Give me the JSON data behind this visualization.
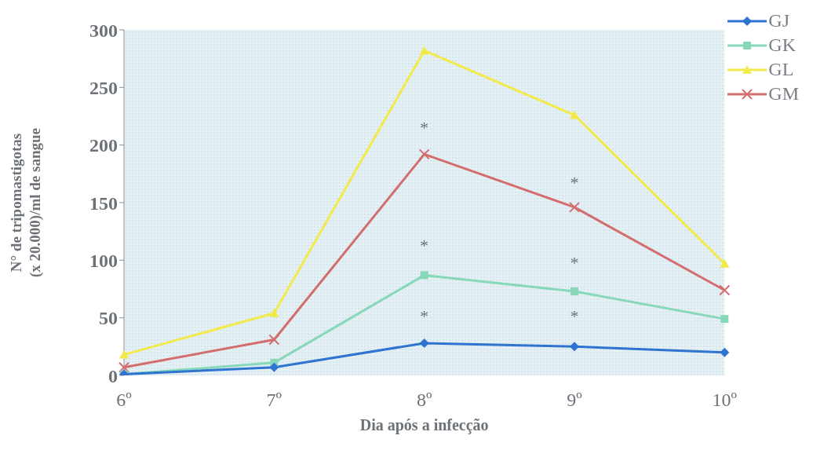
{
  "chart_data": {
    "type": "line",
    "xlabel": "Dia após a infecção",
    "ylabel": "N° de tripomastigotas\n(x 20.000)/ml de sangue",
    "categories": [
      "6º",
      "7º",
      "8º",
      "9º",
      "10º"
    ],
    "series": [
      {
        "name": "GJ",
        "color": "#2f74d0",
        "marker": "diamond",
        "values": [
          1,
          7,
          28,
          25,
          20
        ]
      },
      {
        "name": "GK",
        "color": "#86d8b8",
        "marker": "square",
        "values": [
          1,
          11,
          87,
          73,
          49
        ]
      },
      {
        "name": "GL",
        "color": "#f2ea4a",
        "marker": "triangle",
        "values": [
          18,
          54,
          282,
          226,
          97
        ]
      },
      {
        "name": "GM",
        "color": "#d46e6e",
        "marker": "cross",
        "values": [
          7,
          31,
          192,
          146,
          74
        ]
      }
    ],
    "annotations": [
      "*",
      "*",
      "*",
      "*",
      "*",
      "*"
    ],
    "ylim": [
      0,
      300
    ],
    "yticks": [
      0,
      50,
      100,
      150,
      200,
      250,
      300
    ],
    "grid": false,
    "legend": "top right",
    "line_style": "solid"
  }
}
